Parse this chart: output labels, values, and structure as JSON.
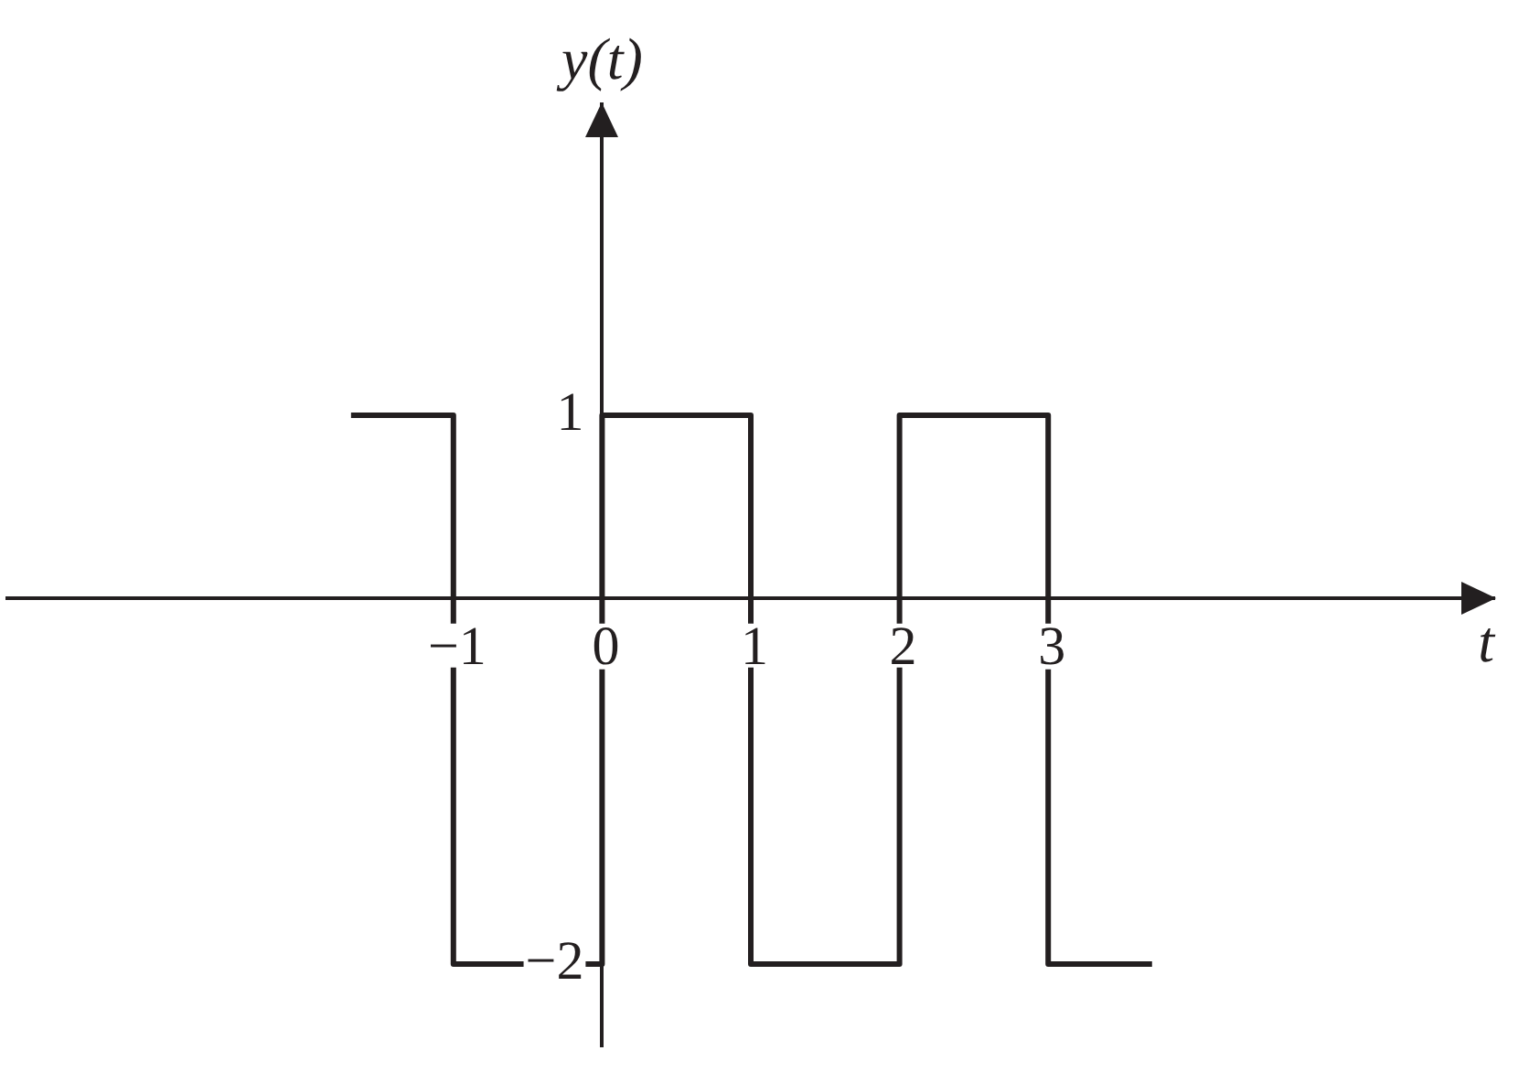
{
  "chart_data": {
    "type": "step",
    "xlabel": "t",
    "ylabel": "y(t)",
    "x": [
      -1.67,
      -1,
      0,
      1,
      2,
      3,
      3.68
    ],
    "values": [
      1,
      -2,
      1,
      -2,
      1,
      -2,
      -2
    ],
    "color": "#231f20",
    "xlim": [
      -4,
      6
    ],
    "ylim": [
      -2.45,
      2.7
    ],
    "xticks": [
      {
        "value": -1,
        "label": "−1"
      },
      0,
      1,
      2,
      3
    ],
    "yticks": [
      1,
      {
        "value": -2,
        "label": "−2"
      }
    ]
  }
}
